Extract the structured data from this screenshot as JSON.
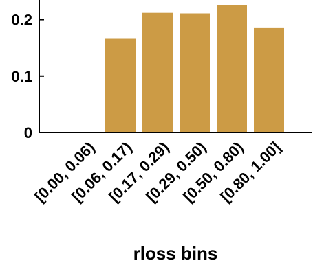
{
  "chart_data": {
    "type": "bar",
    "categories": [
      "[0.00, 0.06)",
      "[0.06, 0.17)",
      "[0.17, 0.29)",
      "[0.29, 0.50)",
      "[0.50, 0.80)",
      "[0.80, 1.00]"
    ],
    "values": [
      0.0,
      0.166,
      0.212,
      0.211,
      0.228,
      0.185
    ],
    "xlabel": "rloss bins",
    "ylabel": "",
    "ylim": [
      0,
      0.225
    ],
    "yticks": [
      0,
      0.1,
      0.2
    ],
    "ytick_labels": [
      "0",
      "0.1",
      "0.2"
    ],
    "bar_color": "#cc9b45",
    "grid": false
  }
}
